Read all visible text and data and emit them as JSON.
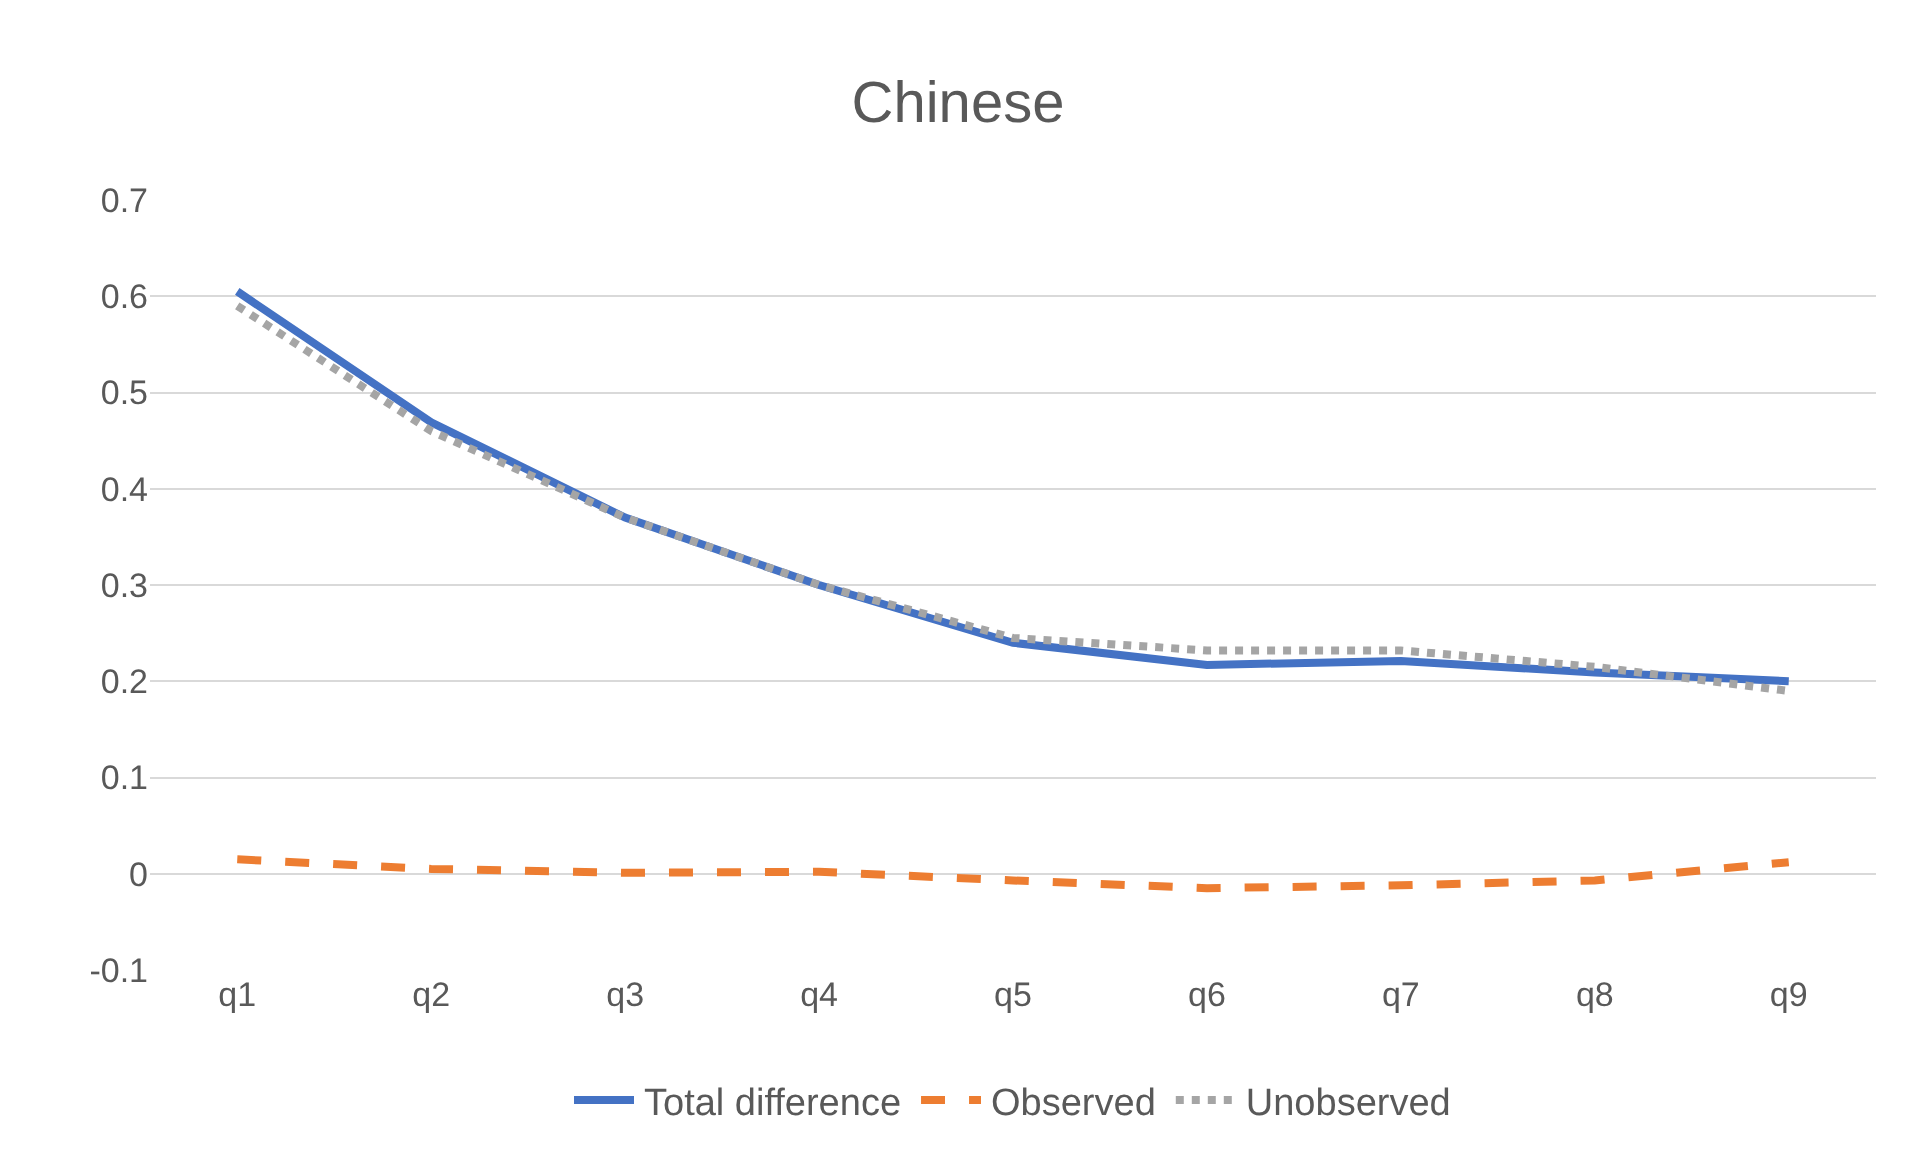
{
  "chart_data": {
    "type": "line",
    "title": "Chinese",
    "categories": [
      "q1",
      "q2",
      "q3",
      "q4",
      "q5",
      "q6",
      "q7",
      "q8",
      "q9"
    ],
    "series": [
      {
        "name": "Total difference",
        "color": "#4472c4",
        "line_style": "solid",
        "values": [
          0.605,
          0.469,
          0.37,
          0.3,
          0.24,
          0.217,
          0.221,
          0.209,
          0.2
        ]
      },
      {
        "name": "Observed",
        "color": "#ed7d31",
        "line_style": "dashed",
        "values": [
          0.015,
          0.005,
          0.001,
          0.002,
          -0.007,
          -0.015,
          -0.012,
          -0.007,
          0.012
        ]
      },
      {
        "name": "Unobserved",
        "color": "#a5a5a5",
        "line_style": "dotted",
        "values": [
          0.59,
          0.46,
          0.37,
          0.3,
          0.245,
          0.232,
          0.232,
          0.215,
          0.19
        ]
      }
    ],
    "ylim": [
      -0.1,
      0.7
    ],
    "yticks": [
      {
        "value": -0.1,
        "label": "-0.1"
      },
      0,
      {
        "value": 0.1,
        "label": "0.1"
      },
      {
        "value": 0.2,
        "label": "0.2"
      },
      {
        "value": 0.3,
        "label": "0.3"
      },
      {
        "value": 0.4,
        "label": "0.4"
      },
      {
        "value": 0.5,
        "label": "0.5"
      },
      {
        "value": 0.6,
        "label": "0.6"
      },
      {
        "value": 0.7,
        "label": "0.7"
      }
    ],
    "grid": "y",
    "legend": "bottom",
    "marker": "none"
  }
}
